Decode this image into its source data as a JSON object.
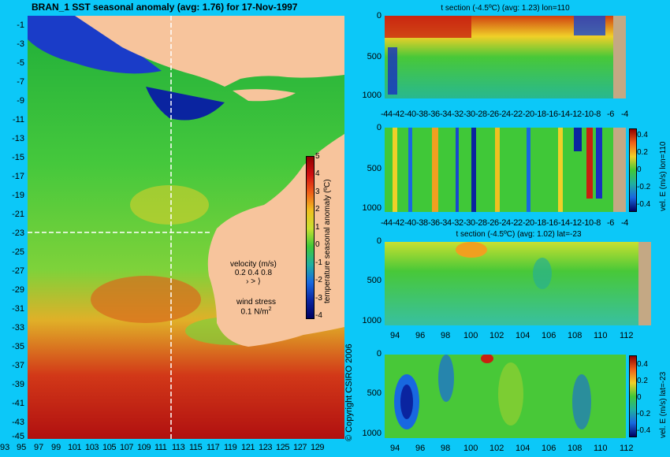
{
  "map": {
    "title": "BRAN_1 SST seasonal anomaly (avg: 1.76) for 17-Nov-1997",
    "lat_labels": [
      "-1",
      "-3",
      "-5",
      "-7",
      "-9",
      "-11",
      "-13",
      "-15",
      "-17",
      "-19",
      "-21",
      "-23",
      "-25",
      "-27",
      "-29",
      "-31",
      "-33",
      "-35",
      "-37",
      "-39",
      "-41",
      "-43",
      "-45"
    ],
    "lon_labels": [
      "93",
      "95",
      "97",
      "99",
      "101",
      "103",
      "105",
      "107",
      "109",
      "111",
      "113",
      "115",
      "117",
      "119",
      "121",
      "123",
      "125",
      "127",
      "129"
    ],
    "colorbar": {
      "label": "temperature seasonal anomaly (ºC)",
      "ticks": [
        "5",
        "4",
        "3",
        "2",
        "1",
        "0",
        "-1",
        "-2",
        "-3",
        "-4"
      ],
      "range": [
        -4,
        5
      ]
    },
    "velocity_legend": {
      "title": "velocity (m/s)",
      "scale": "0.2 0.4 0.8"
    },
    "wind_legend": {
      "title": "wind stress",
      "scale": "0.1 N/m"
    },
    "section_lines": {
      "lon": 110,
      "lat": -23
    }
  },
  "panels": [
    {
      "title": "t section (-4.5ºC) (avg: 1.23) lon=110",
      "xticks": [
        "-44",
        "-42",
        "-40",
        "-38",
        "-36",
        "-34",
        "-32",
        "-30",
        "-28",
        "-26",
        "-24",
        "-22",
        "-20",
        "-18",
        "-16",
        "-14",
        "-12",
        "-10",
        "-8",
        "-6",
        "-4"
      ],
      "yticks": [
        "0",
        "500",
        "1000"
      ]
    },
    {
      "title": "",
      "xticks": [
        "-44",
        "-42",
        "-40",
        "-38",
        "-36",
        "-34",
        "-32",
        "-30",
        "-28",
        "-26",
        "-24",
        "-22",
        "-20",
        "-18",
        "-16",
        "-14",
        "-12",
        "-10",
        "-8",
        "-6",
        "-4"
      ],
      "yticks": [
        "0",
        "500",
        "1000"
      ],
      "colorbar_label": "vel. E (m/s) lon=110",
      "colorbar_ticks": [
        "0.4",
        "0.2",
        "0",
        "-0.2",
        "-0.4"
      ]
    },
    {
      "title": "t section (-4.5ºC) (avg: 1.02) lat=-23",
      "xticks": [
        "94",
        "96",
        "98",
        "100",
        "102",
        "104",
        "106",
        "108",
        "110",
        "112"
      ],
      "yticks": [
        "0",
        "500",
        "1000"
      ]
    },
    {
      "title": "",
      "xticks": [
        "94",
        "96",
        "98",
        "100",
        "102",
        "104",
        "106",
        "108",
        "110",
        "112"
      ],
      "yticks": [
        "0",
        "500",
        "1000"
      ],
      "colorbar_label": "vel. E (m/s) lat=-23",
      "colorbar_ticks": [
        "0.4",
        "0.2",
        "0",
        "-0.2",
        "-0.4"
      ]
    }
  ],
  "copyright": "© Copyright CSIRO 2006",
  "colors": {
    "background": "#0cc8f8",
    "land": "#f7c49c",
    "land_section": "#c4a884",
    "warm": "#c21010",
    "neutral": "#33c833",
    "cool": "#0a24a0"
  }
}
